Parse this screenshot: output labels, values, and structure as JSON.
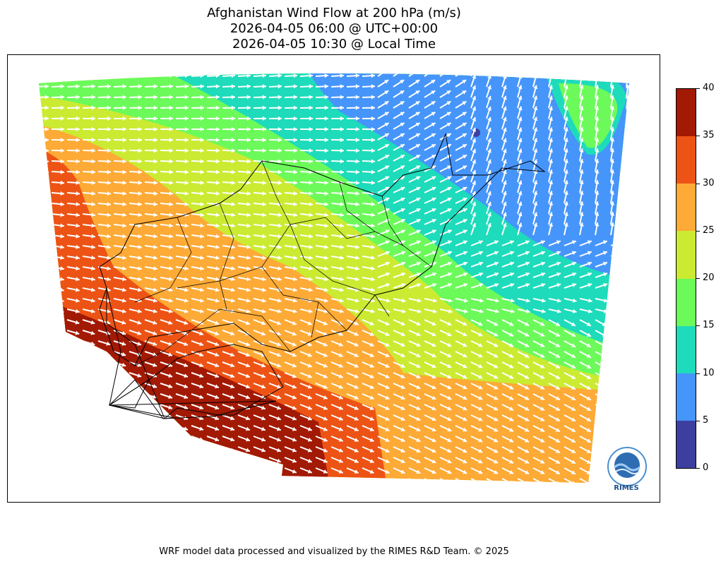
{
  "title": {
    "line1": "Afghanistan Wind Flow at 200 hPa (m/s)",
    "line2": "2026-04-05 06:00 @ UTC+00:00",
    "line3": "2026-04-05 10:30 @ Local Time"
  },
  "colorbar": {
    "ticks": [
      "0",
      "5",
      "10",
      "15",
      "20",
      "25",
      "30",
      "35",
      "40"
    ],
    "levels": [
      {
        "from": 0,
        "to": 5,
        "color": "#3d3fa0"
      },
      {
        "from": 5,
        "to": 10,
        "color": "#4695fa"
      },
      {
        "from": 10,
        "to": 15,
        "color": "#1ddbbb"
      },
      {
        "from": 15,
        "to": 20,
        "color": "#6cfa5a"
      },
      {
        "from": 20,
        "to": 25,
        "color": "#cbea32"
      },
      {
        "from": 25,
        "to": 30,
        "color": "#fdaa36"
      },
      {
        "from": 30,
        "to": 35,
        "color": "#ed5314"
      },
      {
        "from": 35,
        "to": 40,
        "color": "#a21904"
      }
    ]
  },
  "logo": {
    "text": "RIMES"
  },
  "footer": "WRF model data processed and visualized by the RIMES R&D Team. © 2025"
}
